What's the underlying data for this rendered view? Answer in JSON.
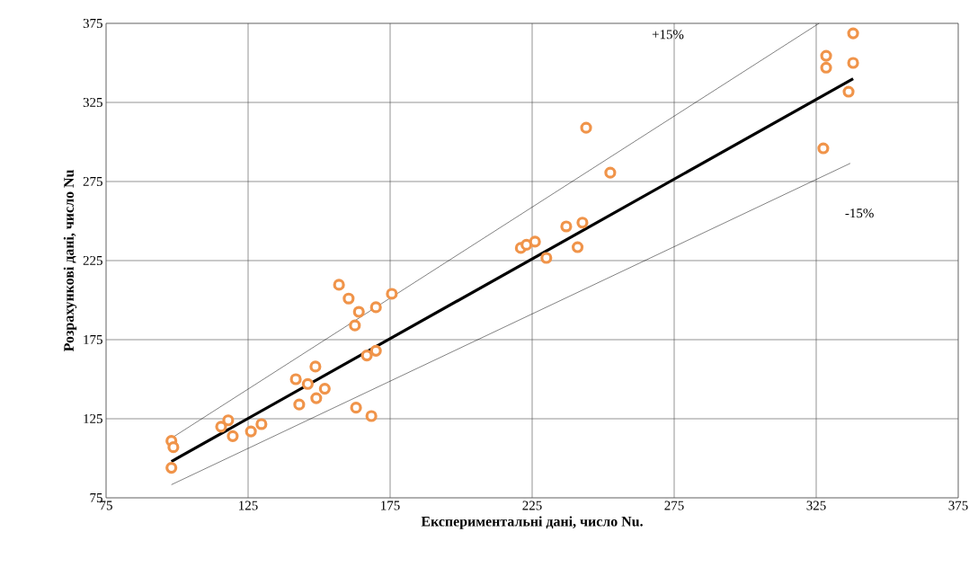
{
  "chart_data": {
    "type": "scatter",
    "xlabel": "Експериментальні дані, число Nu.",
    "ylabel": "Розрахункові дані, число Nu",
    "xlim": [
      75,
      375
    ],
    "ylim": [
      75,
      375
    ],
    "xticks": [
      75,
      125,
      175,
      225,
      275,
      325,
      375
    ],
    "yticks": [
      75,
      125,
      175,
      225,
      275,
      325,
      375
    ],
    "grid": true,
    "annotations": [
      "+15%",
      "-15%"
    ],
    "series": [
      {
        "color": "#f0944a",
        "marker": "circle",
        "x": [
          98,
          98.7,
          98,
          115.5,
          118,
          119.6,
          126,
          129.7,
          141.8,
          143,
          146,
          148.7,
          149,
          152,
          157,
          160.4,
          164,
          162.6,
          170,
          175.6,
          166.8,
          170,
          163,
          168.4,
          244,
          252.5,
          221,
          223,
          226,
          230,
          237,
          242.7,
          241,
          338,
          328.5,
          328.5,
          338,
          336.4,
          327.5
        ],
        "values": [
          111,
          107,
          94,
          120,
          124,
          114,
          117,
          121.6,
          150,
          134,
          147,
          158,
          138,
          144,
          209.7,
          201,
          192.6,
          184,
          195.5,
          204,
          165,
          168,
          132,
          126.7,
          309,
          280.6,
          233,
          235,
          237,
          226.7,
          246.6,
          249,
          233.5,
          368.7,
          354.5,
          347,
          350,
          331.8,
          296
        ]
      },
      {
        "type": "line",
        "color": "#000000",
        "line_style": "solid",
        "marker": "none",
        "x": [
          98,
          338
        ],
        "values": [
          98,
          340
        ]
      },
      {
        "type": "line",
        "color": "#000000",
        "line_style": "solid",
        "marker": "none",
        "x": [
          98,
          326
        ],
        "values": [
          112.7,
          375
        ]
      },
      {
        "type": "line",
        "color": "#000000",
        "line_style": "solid",
        "marker": "none",
        "x": [
          98,
          337
        ],
        "values": [
          83.3,
          286.5
        ]
      }
    ]
  }
}
